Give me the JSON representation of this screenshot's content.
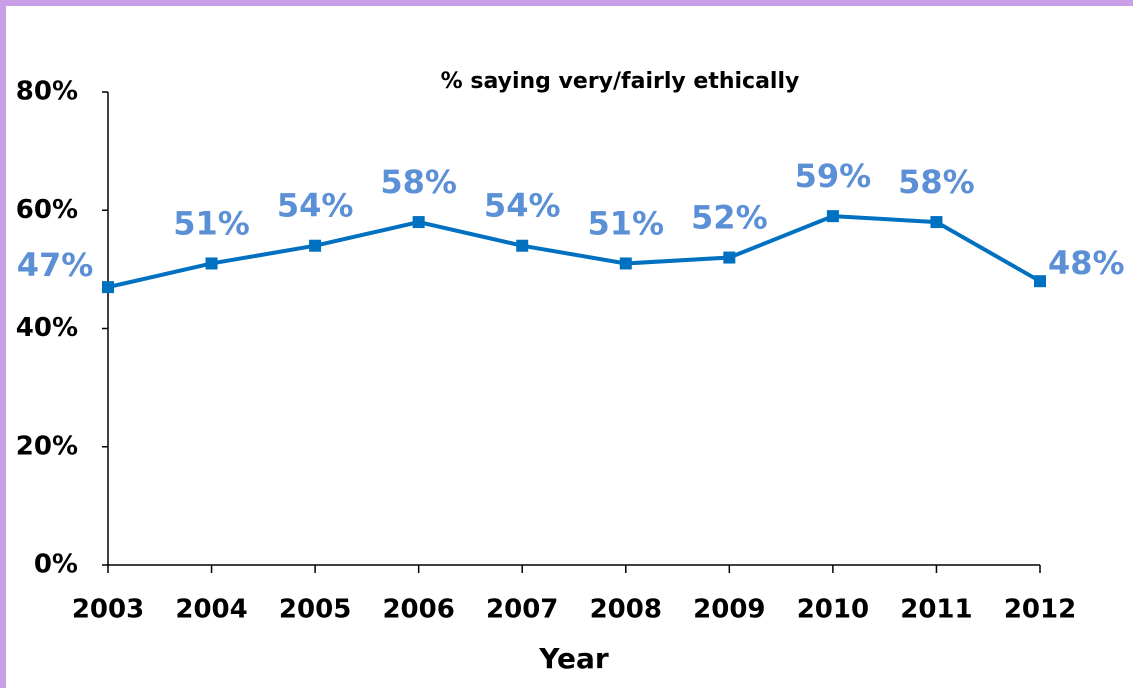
{
  "chart_data": {
    "type": "line",
    "title": "% saying very/fairly ethically",
    "x_label": "Year",
    "categories": [
      "2003",
      "2004",
      "2005",
      "2006",
      "2007",
      "2008",
      "2009",
      "2010",
      "2011",
      "2012"
    ],
    "series": [
      {
        "name": "% saying very/fairly ethically",
        "color": "#0070c0",
        "values": [
          47,
          51,
          54,
          58,
          54,
          51,
          52,
          59,
          58,
          48
        ],
        "value_labels": [
          "47%",
          "51%",
          "54%",
          "58%",
          "54%",
          "51%",
          "52%",
          "59%",
          "58%",
          "48%"
        ]
      }
    ],
    "ylim": [
      0,
      80
    ],
    "yticks": [
      {
        "value": 0,
        "label": "0%"
      },
      {
        "value": 20,
        "label": "20%"
      },
      {
        "value": 40,
        "label": "40%"
      },
      {
        "value": 60,
        "label": "60%"
      },
      {
        "value": 80,
        "label": "80%"
      }
    ],
    "grid": false
  }
}
